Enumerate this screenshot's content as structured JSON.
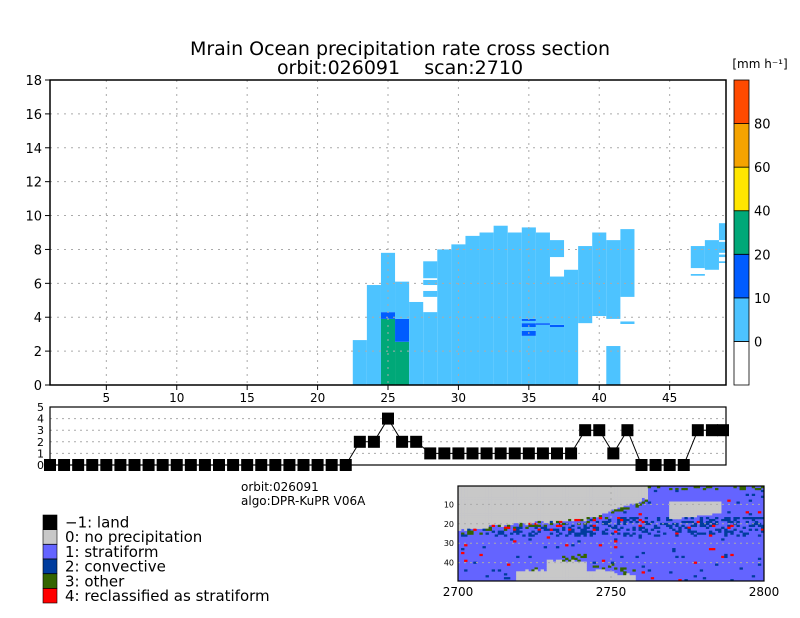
{
  "chart_data": [
    {
      "type": "heatmap",
      "title": "Mrain Ocean precipitation rate cross section",
      "subtitle": "orbit:026091    scan:2710",
      "xlabel": "",
      "ylabel": "",
      "xlim": [
        1,
        49
      ],
      "ylim": [
        0,
        18
      ],
      "xticks": [
        "5",
        "10",
        "15",
        "20",
        "25",
        "30",
        "35",
        "40",
        "45"
      ],
      "yticks": [
        "0",
        "2",
        "4",
        "6",
        "8",
        "10",
        "12",
        "14",
        "16",
        "18"
      ],
      "grid": true,
      "colorbar": {
        "unit": "[mm h⁻¹]",
        "labels": [
          "0",
          "10",
          "20",
          "40",
          "60",
          "80"
        ],
        "bins": [
          {
            "range": "<0",
            "color": "#ffffff"
          },
          {
            "range": "0-10",
            "color": "#4dc3ff"
          },
          {
            "range": "10-20",
            "color": "#005cff"
          },
          {
            "range": "20-40",
            "color": "#00a878"
          },
          {
            "range": "40-60",
            "color": "#ffe600"
          },
          {
            "range": "60-80",
            "color": "#f5a300"
          },
          {
            "range": ">80",
            "color": "#ff4a00"
          }
        ]
      },
      "columns": [
        {
          "x": 23,
          "segs": [
            [
              0,
              2.65,
              1
            ]
          ]
        },
        {
          "x": 24,
          "segs": [
            [
              0,
              5.9,
              1
            ]
          ]
        },
        {
          "x": 25,
          "segs": [
            [
              0,
              3.9,
              3
            ],
            [
              3.9,
              4.3,
              2
            ],
            [
              4.3,
              7.8,
              1
            ]
          ]
        },
        {
          "x": 26,
          "segs": [
            [
              0,
              2.55,
              3
            ],
            [
              2.55,
              3.9,
              2
            ],
            [
              3.9,
              6.1,
              1
            ]
          ]
        },
        {
          "x": 27,
          "segs": [
            [
              0,
              4.9,
              1
            ]
          ]
        },
        {
          "x": 28,
          "segs": [
            [
              0,
              4.3,
              1
            ],
            [
              5.2,
              5.55,
              1
            ],
            [
              5.9,
              6.2,
              1
            ],
            [
              6.3,
              7.3,
              1
            ]
          ]
        },
        {
          "x": 29,
          "segs": [
            [
              0,
              8.0,
              1
            ]
          ]
        },
        {
          "x": 30,
          "segs": [
            [
              0,
              8.3,
              1
            ]
          ]
        },
        {
          "x": 31,
          "segs": [
            [
              0,
              8.8,
              1
            ]
          ]
        },
        {
          "x": 32,
          "segs": [
            [
              0,
              9.0,
              1
            ]
          ]
        },
        {
          "x": 33,
          "segs": [
            [
              0,
              9.4,
              1
            ]
          ]
        },
        {
          "x": 34,
          "segs": [
            [
              0,
              9.0,
              1
            ]
          ]
        },
        {
          "x": 35,
          "segs": [
            [
              0,
              2.9,
              1
            ],
            [
              2.9,
              3.2,
              2
            ],
            [
              3.2,
              3.42,
              1
            ],
            [
              3.42,
              3.65,
              2
            ],
            [
              3.65,
              3.78,
              1
            ],
            [
              3.78,
              3.9,
              2
            ],
            [
              3.9,
              9.3,
              1
            ]
          ]
        },
        {
          "x": 36,
          "segs": [
            [
              0,
              3.55,
              1
            ],
            [
              3.55,
              3.65,
              2
            ],
            [
              3.65,
              9.0,
              1
            ]
          ]
        },
        {
          "x": 37,
          "segs": [
            [
              0,
              3.42,
              1
            ],
            [
              3.42,
              3.55,
              2
            ],
            [
              3.55,
              6.4,
              1
            ],
            [
              7.55,
              8.55,
              1
            ]
          ]
        },
        {
          "x": 38,
          "segs": [
            [
              0,
              6.8,
              1
            ]
          ]
        },
        {
          "x": 39,
          "segs": [
            [
              3.65,
              8.2,
              1
            ]
          ]
        },
        {
          "x": 40,
          "segs": [
            [
              4.07,
              9.0,
              1
            ]
          ]
        },
        {
          "x": 41,
          "segs": [
            [
              0,
              2.3,
              1
            ],
            [
              3.9,
              8.55,
              1
            ]
          ]
        },
        {
          "x": 42,
          "segs": [
            [
              3.6,
              3.75,
              1
            ],
            [
              5.2,
              9.2,
              1
            ]
          ]
        },
        {
          "x": 47,
          "segs": [
            [
              6.45,
              6.55,
              1
            ],
            [
              6.9,
              8.2,
              1
            ]
          ]
        },
        {
          "x": 48,
          "segs": [
            [
              6.8,
              8.55,
              1
            ]
          ]
        },
        {
          "x": 49,
          "segs": [
            [
              7.2,
              7.3,
              1
            ],
            [
              7.55,
              7.7,
              1
            ],
            [
              7.8,
              8.45,
              1
            ],
            [
              8.55,
              9.55,
              1
            ]
          ]
        }
      ]
    },
    {
      "type": "line",
      "ylim": [
        0,
        5
      ],
      "yticks": [
        "0",
        "1",
        "2",
        "3",
        "4",
        "5"
      ],
      "x": [
        1,
        2,
        3,
        4,
        5,
        6,
        7,
        8,
        9,
        10,
        11,
        12,
        13,
        14,
        15,
        16,
        17,
        18,
        19,
        20,
        21,
        22,
        23,
        24,
        25,
        26,
        27,
        28,
        29,
        30,
        31,
        32,
        33,
        34,
        35,
        36,
        37,
        38,
        39,
        40,
        41,
        42,
        43,
        44,
        45,
        46,
        47,
        48,
        49
      ],
      "values": [
        0,
        0,
        0,
        0,
        0,
        0,
        0,
        0,
        0,
        0,
        0,
        0,
        0,
        0,
        0,
        0,
        0,
        0,
        0,
        0,
        0,
        0,
        2,
        2,
        4,
        2,
        2,
        1,
        1,
        1,
        1,
        1,
        1,
        1,
        1,
        1,
        1,
        1,
        3,
        3,
        1,
        3,
        0,
        0,
        0,
        0,
        3,
        3,
        3
      ]
    },
    {
      "type": "heatmap",
      "xticks": [
        "2700",
        "2750",
        "2800"
      ],
      "yticks": [
        "10",
        "20",
        "30",
        "40"
      ],
      "xlim": [
        2700,
        2800
      ],
      "ylim": [
        49,
        1
      ]
    }
  ],
  "info": {
    "orbit": "orbit:026091",
    "algo": "algo:DPR-KuPR V06A"
  },
  "legend": [
    {
      "label": "−1: land",
      "color": "#000000"
    },
    {
      "label": "0: no precipitation",
      "color": "#c8c8c8"
    },
    {
      "label": "1: stratiform",
      "color": "#6464ff"
    },
    {
      "label": "2: convective",
      "color": "#003c9e"
    },
    {
      "label": "3: other",
      "color": "#346400"
    },
    {
      "label": "4: reclassified as stratiform",
      "color": "#ff0000"
    }
  ]
}
